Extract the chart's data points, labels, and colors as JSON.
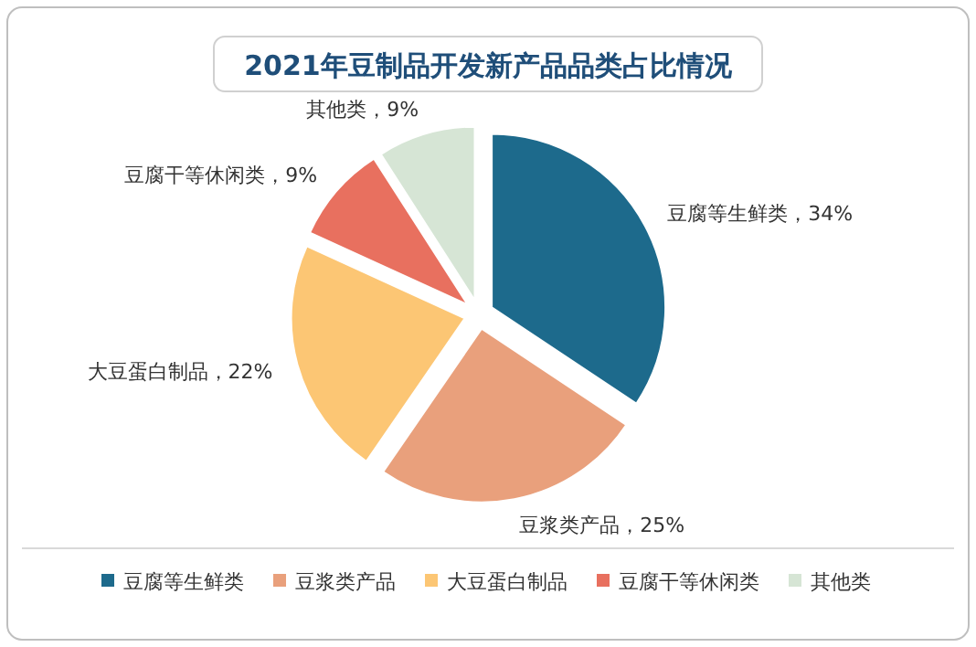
{
  "chart_data": {
    "type": "pie",
    "title": "2021年豆制品开发新产品品类占比情况",
    "categories": [
      "豆腐等生鲜类",
      "豆浆类产品",
      "大豆蛋白制品",
      "豆腐干等休闲类",
      "其他类"
    ],
    "values": [
      34,
      25,
      22,
      9,
      9
    ],
    "colors": [
      "#1d6a8c",
      "#e9a07c",
      "#fcc674",
      "#e8705f",
      "#d6e5d5"
    ],
    "value_labels": [
      "豆腐等生鲜类，34%",
      "豆浆类产品，25%",
      "大豆蛋白制品，22%",
      "豆腐干等休闲类，9%",
      "其他类，9%"
    ],
    "legend": "bottom"
  }
}
